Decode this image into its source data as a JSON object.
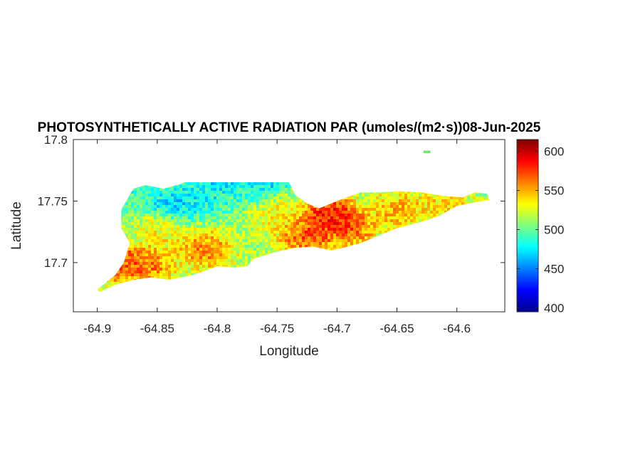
{
  "chart_data": {
    "type": "heatmap",
    "title": "PHOTOSYNTHETICALLY ACTIVE RADIATION PAR (umoles/(m2·s))08-Jun-2025",
    "xlabel": "Longitude",
    "ylabel": "Latitude",
    "xlim": [
      -64.92,
      -64.56
    ],
    "ylim": [
      17.66,
      17.8
    ],
    "x_ticks": [
      -64.9,
      -64.85,
      -64.8,
      -64.75,
      -64.7,
      -64.65,
      -64.6
    ],
    "x_tick_labels": [
      "-64.9",
      "-64.85",
      "-64.8",
      "-64.75",
      "-64.7",
      "-64.65",
      "-64.6"
    ],
    "y_ticks": [
      17.7,
      17.75,
      17.8
    ],
    "y_tick_labels": [
      "17.7",
      "17.75",
      "17.8"
    ],
    "colorbar": {
      "colormap": "jet",
      "clim": [
        395,
        615
      ],
      "ticks": [
        400,
        450,
        500,
        550,
        600
      ],
      "tick_labels": [
        "400",
        "450",
        "500",
        "550",
        "600"
      ]
    },
    "grid": false,
    "island_outline": [
      [
        -64.9,
        17.678
      ],
      [
        -64.885,
        17.69
      ],
      [
        -64.878,
        17.7
      ],
      [
        -64.873,
        17.716
      ],
      [
        -64.88,
        17.728
      ],
      [
        -64.88,
        17.743
      ],
      [
        -64.87,
        17.76
      ],
      [
        -64.86,
        17.763
      ],
      [
        -64.845,
        17.76
      ],
      [
        -64.83,
        17.764
      ],
      [
        -64.818,
        17.77
      ],
      [
        -64.805,
        17.776
      ],
      [
        -64.79,
        17.775
      ],
      [
        -64.78,
        17.782
      ],
      [
        -64.77,
        17.78
      ],
      [
        -64.76,
        17.776
      ],
      [
        -64.75,
        17.772
      ],
      [
        -64.74,
        17.765
      ],
      [
        -64.735,
        17.755
      ],
      [
        -64.725,
        17.748
      ],
      [
        -64.715,
        17.744
      ],
      [
        -64.705,
        17.748
      ],
      [
        -64.695,
        17.752
      ],
      [
        -64.68,
        17.757
      ],
      [
        -64.665,
        17.757
      ],
      [
        -64.65,
        17.758
      ],
      [
        -64.63,
        17.757
      ],
      [
        -64.61,
        17.754
      ],
      [
        -64.595,
        17.753
      ],
      [
        -64.585,
        17.757
      ],
      [
        -64.575,
        17.756
      ],
      [
        -64.573,
        17.751
      ],
      [
        -64.585,
        17.749
      ],
      [
        -64.6,
        17.746
      ],
      [
        -64.615,
        17.738
      ],
      [
        -64.63,
        17.733
      ],
      [
        -64.65,
        17.728
      ],
      [
        -64.665,
        17.722
      ],
      [
        -64.68,
        17.716
      ],
      [
        -64.695,
        17.712
      ],
      [
        -64.705,
        17.71
      ],
      [
        -64.72,
        17.713
      ],
      [
        -64.735,
        17.712
      ],
      [
        -64.75,
        17.709
      ],
      [
        -64.76,
        17.706
      ],
      [
        -64.77,
        17.703
      ],
      [
        -64.775,
        17.697
      ],
      [
        -64.785,
        17.696
      ],
      [
        -64.8,
        17.697
      ],
      [
        -64.82,
        17.69
      ],
      [
        -64.84,
        17.686
      ],
      [
        -64.855,
        17.688
      ],
      [
        -64.87,
        17.686
      ],
      [
        -64.885,
        17.682
      ],
      [
        -64.898,
        17.676
      ]
    ],
    "islet_outline": [
      [
        -64.628,
        17.791
      ],
      [
        -64.622,
        17.791
      ],
      [
        -64.622,
        17.789
      ],
      [
        -64.628,
        17.789
      ]
    ],
    "value_hotspots": [
      {
        "lon": -64.795,
        "lat": 17.773,
        "value": 440
      },
      {
        "lon": -64.76,
        "lat": 17.773,
        "value": 438
      },
      {
        "lon": -64.835,
        "lat": 17.747,
        "value": 455
      },
      {
        "lon": -64.81,
        "lat": 17.752,
        "value": 470
      },
      {
        "lon": -64.865,
        "lat": 17.76,
        "value": 480
      },
      {
        "lon": -64.78,
        "lat": 17.758,
        "value": 485
      },
      {
        "lon": -64.705,
        "lat": 17.738,
        "value": 612
      },
      {
        "lon": -64.69,
        "lat": 17.728,
        "value": 580
      },
      {
        "lon": -64.725,
        "lat": 17.722,
        "value": 590
      },
      {
        "lon": -64.885,
        "lat": 17.7,
        "value": 590
      },
      {
        "lon": -64.86,
        "lat": 17.698,
        "value": 580
      },
      {
        "lon": -64.81,
        "lat": 17.71,
        "value": 575
      },
      {
        "lon": -64.65,
        "lat": 17.742,
        "value": 560
      },
      {
        "lon": -64.61,
        "lat": 17.75,
        "value": 550
      },
      {
        "lon": -64.75,
        "lat": 17.737,
        "value": 540
      },
      {
        "lon": -64.845,
        "lat": 17.725,
        "value": 540
      }
    ],
    "base_value": 512
  }
}
